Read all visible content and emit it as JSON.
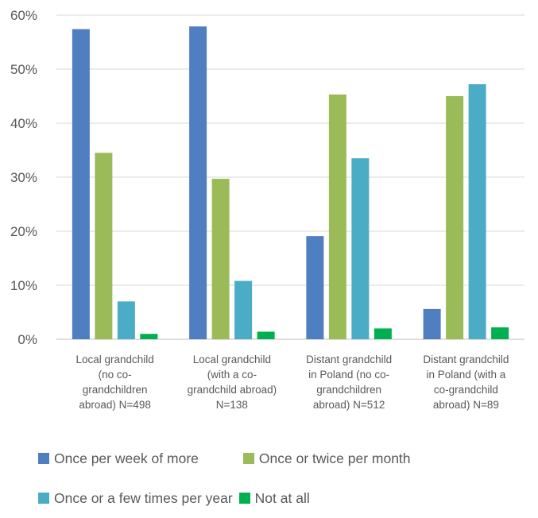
{
  "chart_data": {
    "type": "bar",
    "categories": [
      [
        "Local grandchild",
        "(no co-",
        "grandchildren",
        "abroad) N=498"
      ],
      [
        "Local grandchild",
        "(with a co-",
        "grandchild abroad)",
        "N=138"
      ],
      [
        "Distant grandchild",
        "in Poland (no co-",
        "grandchildren",
        "abroad) N=512"
      ],
      [
        "Distant grandchild",
        "in Poland (with a",
        "co-grandchild",
        "abroad) N=89"
      ]
    ],
    "series": [
      {
        "name": "Once per week of more",
        "color": "#4F7FC0",
        "values": [
          57.4,
          57.9,
          19.1,
          5.6
        ]
      },
      {
        "name": "Once or twice per month",
        "color": "#9BBB59",
        "values": [
          34.5,
          29.7,
          45.3,
          45.0
        ]
      },
      {
        "name": "Once or a few times per year",
        "color": "#4BACC6",
        "values": [
          7.0,
          10.8,
          33.5,
          47.2
        ]
      },
      {
        "name": "Not at all",
        "color": "#00B050",
        "values": [
          1.0,
          1.4,
          2.0,
          2.2
        ]
      }
    ],
    "yticks": [
      "0%",
      "10%",
      "20%",
      "30%",
      "40%",
      "50%",
      "60%"
    ],
    "ylim": [
      0,
      60
    ],
    "grid": true,
    "legend_position": "bottom",
    "title": "",
    "xlabel": "",
    "ylabel": ""
  }
}
